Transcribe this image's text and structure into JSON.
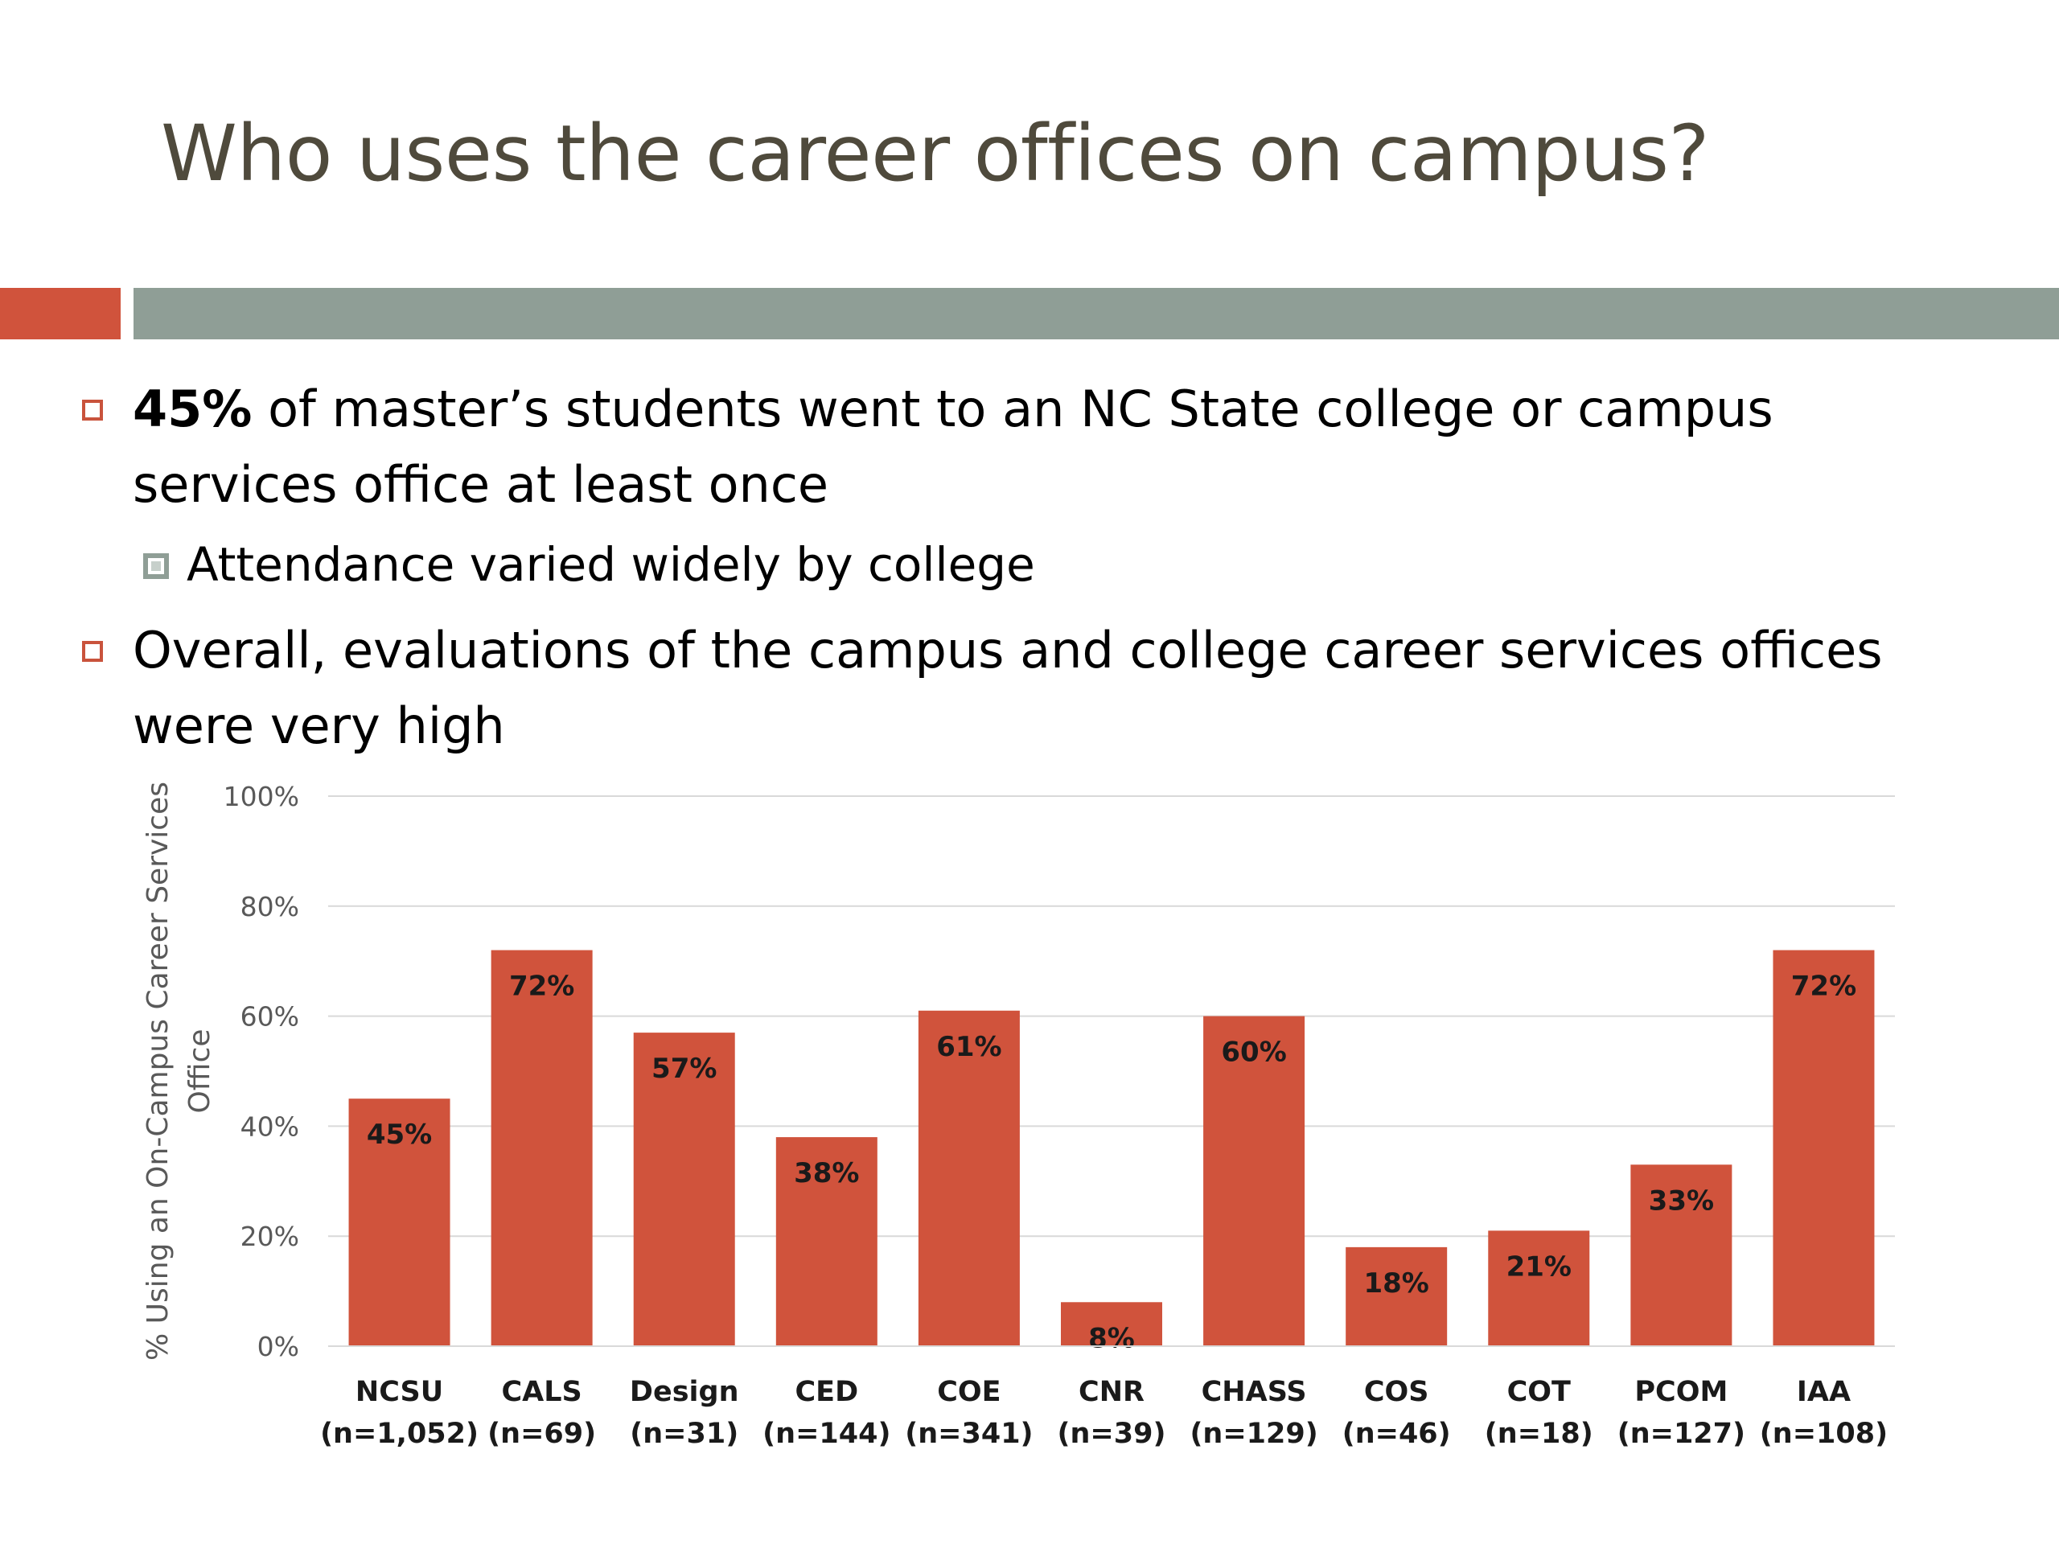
{
  "slide": {
    "title": "Who uses the career offices on campus?",
    "accent_color": "#d0533c",
    "rule_color": "#8f9e96"
  },
  "bullets": [
    {
      "bold": "45%",
      "line1": " of master’s students went to an NC State college or campus",
      "line2": "services office at least once"
    },
    {
      "text": "Attendance varied widely by college"
    },
    {
      "line1": "Overall, evaluations of the campus and college career services offices",
      "line2": "were very high"
    }
  ],
  "chart_data": {
    "type": "bar",
    "ylabel_lines": [
      "% Using an On-Campus Career Services",
      "Office"
    ],
    "ylim": [
      0,
      100
    ],
    "yticks": [
      "0%",
      "20%",
      "40%",
      "60%",
      "80%",
      "100%"
    ],
    "grid": true,
    "bar_color": "#d0533c",
    "categories": [
      {
        "name": "NCSU",
        "n": "(n=1,052)"
      },
      {
        "name": "CALS",
        "n": "(n=69)"
      },
      {
        "name": "Design",
        "n": "(n=31)"
      },
      {
        "name": "CED",
        "n": "(n=144)"
      },
      {
        "name": "COE",
        "n": "(n=341)"
      },
      {
        "name": "CNR",
        "n": "(n=39)"
      },
      {
        "name": "CHASS",
        "n": "(n=129)"
      },
      {
        "name": "COS",
        "n": "(n=46)"
      },
      {
        "name": "COT",
        "n": "(n=18)"
      },
      {
        "name": "PCOM",
        "n": "(n=127)"
      },
      {
        "name": "IAA",
        "n": "(n=108)"
      }
    ],
    "values": [
      45,
      72,
      57,
      38,
      61,
      8,
      60,
      18,
      21,
      33,
      72
    ],
    "data_labels": [
      "45%",
      "72%",
      "57%",
      "38%",
      "61%",
      "8%",
      "60%",
      "18%",
      "21%",
      "33%",
      "72%"
    ]
  }
}
